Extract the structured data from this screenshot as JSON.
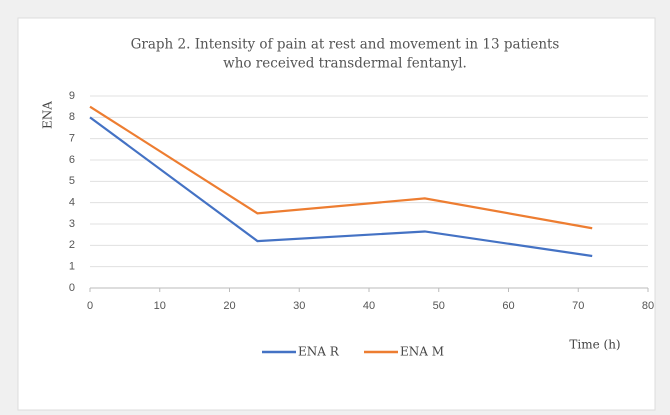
{
  "chart_data": {
    "type": "line",
    "title": "Graph 2. Intensity of pain at rest and movement in 13 patients",
    "subtitle": "who received transdermal fentanyl.",
    "x_label": "Time (h)",
    "y_label": "ENA",
    "x": [
      0,
      24,
      48,
      72
    ],
    "series": [
      {
        "name": "ENA R",
        "color": "#4472c4",
        "values": [
          8,
          2.2,
          2.65,
          1.5
        ]
      },
      {
        "name": "ENA M",
        "color": "#ed7d31",
        "values": [
          8.5,
          3.5,
          4.2,
          2.8
        ]
      }
    ],
    "xlim": [
      0,
      80
    ],
    "xticks": [
      0,
      10,
      20,
      30,
      40,
      50,
      60,
      70,
      80
    ],
    "ylim": [
      0,
      9
    ],
    "yticks": [
      0,
      1,
      2,
      3,
      4,
      5,
      6,
      7,
      8,
      9
    ],
    "grid": true,
    "legend": "bottom"
  }
}
